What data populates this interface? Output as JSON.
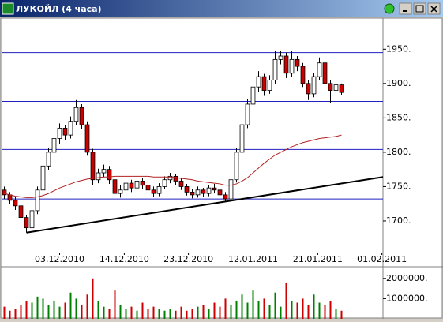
{
  "chart_data": {
    "type": "candlestick",
    "title": "ЛУКОЙЛ (4 часа)",
    "open": [
      1745,
      1738,
      1730,
      1722,
      1705,
      1690,
      1715,
      1745,
      1780,
      1800,
      1820,
      1835,
      1825,
      1845,
      1865,
      1840,
      1800,
      1760,
      1770,
      1775,
      1760,
      1740,
      1745,
      1755,
      1748,
      1758,
      1752,
      1745,
      1740,
      1750,
      1760,
      1765,
      1758,
      1750,
      1742,
      1738,
      1745,
      1740,
      1748,
      1745,
      1738,
      1732,
      1760,
      1800,
      1840,
      1870,
      1895,
      1910,
      1890,
      1905,
      1935,
      1940,
      1915,
      1935,
      1925,
      1900,
      1885,
      1910,
      1930,
      1900,
      1890,
      1898
    ],
    "high": [
      1750,
      1742,
      1735,
      1726,
      1708,
      1720,
      1750,
      1786,
      1806,
      1828,
      1842,
      1840,
      1852,
      1876,
      1870,
      1845,
      1805,
      1776,
      1782,
      1780,
      1764,
      1752,
      1760,
      1760,
      1764,
      1762,
      1756,
      1750,
      1755,
      1765,
      1770,
      1768,
      1762,
      1754,
      1746,
      1750,
      1748,
      1752,
      1754,
      1750,
      1742,
      1765,
      1806,
      1848,
      1878,
      1905,
      1918,
      1914,
      1912,
      1948,
      1948,
      1945,
      1948,
      1940,
      1930,
      1905,
      1915,
      1938,
      1933,
      1905,
      1902,
      1900
    ],
    "low": [
      1732,
      1724,
      1716,
      1698,
      1683,
      1686,
      1710,
      1740,
      1774,
      1794,
      1812,
      1818,
      1820,
      1840,
      1834,
      1795,
      1752,
      1755,
      1764,
      1754,
      1733,
      1734,
      1740,
      1742,
      1744,
      1746,
      1740,
      1735,
      1736,
      1746,
      1755,
      1752,
      1745,
      1737,
      1733,
      1734,
      1735,
      1736,
      1740,
      1733,
      1728,
      1730,
      1756,
      1796,
      1835,
      1865,
      1888,
      1882,
      1885,
      1900,
      1928,
      1908,
      1910,
      1918,
      1895,
      1876,
      1880,
      1905,
      1893,
      1872,
      1880,
      1883
    ],
    "close": [
      1738,
      1730,
      1722,
      1705,
      1690,
      1715,
      1745,
      1780,
      1800,
      1820,
      1835,
      1825,
      1845,
      1865,
      1840,
      1800,
      1760,
      1770,
      1775,
      1760,
      1740,
      1745,
      1755,
      1748,
      1758,
      1752,
      1745,
      1740,
      1750,
      1760,
      1765,
      1758,
      1750,
      1742,
      1738,
      1745,
      1740,
      1748,
      1745,
      1738,
      1732,
      1760,
      1800,
      1840,
      1870,
      1895,
      1910,
      1890,
      1905,
      1935,
      1940,
      1915,
      1935,
      1925,
      1900,
      1885,
      1910,
      1930,
      1900,
      1890,
      1898,
      1887
    ],
    "volume": [
      600000,
      400000,
      500000,
      700000,
      900000,
      800000,
      1100000,
      1000000,
      700000,
      900000,
      600000,
      800000,
      1300000,
      1000000,
      700000,
      1200000,
      2000000,
      900000,
      600000,
      500000,
      1400000,
      700000,
      500000,
      600000,
      400000,
      800000,
      500000,
      600000,
      500000,
      400000,
      500000,
      400000,
      600000,
      400000,
      500000,
      600000,
      700000,
      500000,
      800000,
      600000,
      1000000,
      700000,
      900000,
      1200000,
      800000,
      1400000,
      900000,
      1000000,
      700000,
      1300000,
      600000,
      1800000,
      900000,
      800000,
      1000000,
      700000,
      1200000,
      800000,
      700000,
      900000,
      500000,
      400000
    ],
    "ma_values": [
      1740,
      1738,
      1736,
      1735,
      1734,
      1734,
      1735,
      1737,
      1740,
      1744,
      1748,
      1751,
      1754,
      1757,
      1759,
      1761,
      1762,
      1763,
      1764,
      1764,
      1765,
      1765,
      1765,
      1765,
      1765,
      1765,
      1765,
      1764,
      1764,
      1764,
      1764,
      1763,
      1762,
      1761,
      1760,
      1758,
      1757,
      1756,
      1755,
      1754,
      1752,
      1752,
      1754,
      1758,
      1763,
      1770,
      1777,
      1784,
      1790,
      1796,
      1800,
      1804,
      1808,
      1811,
      1814,
      1816,
      1818,
      1820,
      1821,
      1822,
      1823,
      1825
    ],
    "ma_color": "#b22222",
    "levels": [
      1945,
      1874,
      1804,
      1732
    ],
    "level_color": "#2020c0",
    "trendline": {
      "x": [
        4,
        68.5
      ],
      "y": [
        1683,
        1764
      ],
      "color": "#000000"
    },
    "up_color": "#ffffff",
    "down_color": "#cc0000",
    "volume_up_color": "#008000",
    "volume_down_color": "#cc0000",
    "xlim": [
      -0.5,
      68.5
    ],
    "xticks": [
      {
        "value": 10,
        "label": "03.12.2010"
      },
      {
        "value": 21.7,
        "label": "14.12.2010"
      },
      {
        "value": 33.3,
        "label": "23.12.2010"
      },
      {
        "value": 45,
        "label": "12.01.2011"
      },
      {
        "value": 56.7,
        "label": "21.01.2011"
      },
      {
        "value": 68.3,
        "label": "01.02.2011"
      }
    ],
    "ylim": [
      1654,
      1994
    ],
    "yticks": [
      {
        "value": 1950,
        "label": "1950."
      },
      {
        "value": 1900,
        "label": "1900."
      },
      {
        "value": 1850,
        "label": "1850."
      },
      {
        "value": 1800,
        "label": "1800."
      },
      {
        "value": 1750,
        "label": "1750."
      },
      {
        "value": 1700,
        "label": "1700."
      }
    ],
    "vlim": [
      0,
      2500000
    ],
    "vticks": [
      {
        "value": 2000000,
        "label": "2000000."
      },
      {
        "value": 1000000,
        "label": "1000000."
      }
    ]
  }
}
